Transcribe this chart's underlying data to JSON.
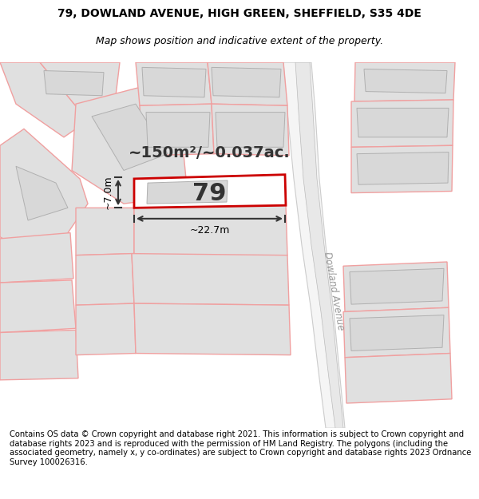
{
  "title_line1": "79, DOWLAND AVENUE, HIGH GREEN, SHEFFIELD, S35 4DE",
  "title_line2": "Map shows position and indicative extent of the property.",
  "footer_text": "Contains OS data © Crown copyright and database right 2021. This information is subject to Crown copyright and database rights 2023 and is reproduced with the permission of HM Land Registry. The polygons (including the associated geometry, namely x, y co-ordinates) are subject to Crown copyright and database rights 2023 Ordnance Survey 100026316.",
  "area_label": "~150m²/~0.037ac.",
  "property_number": "79",
  "dim_width": "~22.7m",
  "dim_height": "~7.0m",
  "street_label": "Dowland Avenue",
  "map_bg": "#ffffff",
  "plot_fill": "#e8e8e8",
  "plot_edge_color": "#cc0000",
  "plot_lw": 1.5,
  "other_plots_fill": "#e0e0e0",
  "other_plots_edge": "#f0a0a0",
  "other_plots_lw": 1.0,
  "building_fill": "#d8d8d8",
  "building_edge": "#b0b0b0",
  "road_fill": "#ffffff",
  "road_edge": "#c0c0c0",
  "title_fontsize": 10,
  "subtitle_fontsize": 9,
  "footer_fontsize": 7.2,
  "area_fontsize": 14,
  "num_fontsize": 22,
  "dim_fontsize": 9
}
